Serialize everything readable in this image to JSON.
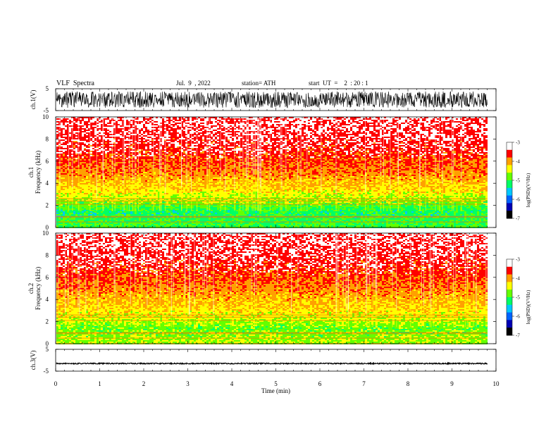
{
  "header": {
    "title": "VLF  Spectra",
    "date": "Jul.  9  , 2022",
    "station": "station= ATH",
    "start": "start  UT  =    2  : 20 : 1"
  },
  "colors": {
    "spectrogram_levels": [
      "#000000",
      "#0000b4",
      "#0064ff",
      "#00c8ff",
      "#00ff64",
      "#64ff00",
      "#ffff00",
      "#ffa000",
      "#ff0000",
      "#ffffff"
    ],
    "trace": "#000000"
  },
  "chart_data": [
    {
      "type": "line",
      "panel": "ch1-waveform",
      "ylabel": "ch.1(V)",
      "ylim": [
        -5,
        5
      ],
      "yticks": [
        "5",
        "-5"
      ],
      "x": [
        0,
        9.8
      ],
      "description_of_signal": "noisy waveform"
    },
    {
      "type": "heatmap",
      "panel": "ch1-spectrogram",
      "ylabel_top": "ch.1",
      "ylabel": "Frequency  (kHz)",
      "ylim": [
        0,
        10
      ],
      "yticks": [
        "0",
        "2",
        "4",
        "6",
        "8",
        "10"
      ],
      "colorbar": {
        "label": "log(PSD)(V²/Hz)",
        "ticks": [
          "-3",
          "-4",
          "-5",
          "-6",
          "-7"
        ],
        "range": [
          -7,
          -3
        ]
      },
      "profile_khz": [
        [
          0.3,
          -5.0
        ],
        [
          1.5,
          -5.2
        ],
        [
          2.5,
          -4.6
        ],
        [
          3.5,
          -4.2
        ],
        [
          5.0,
          -3.8
        ],
        [
          7.0,
          -3.4
        ],
        [
          10.0,
          -3.2
        ]
      ]
    },
    {
      "type": "heatmap",
      "panel": "ch2-spectrogram",
      "ylabel_top": "ch.2",
      "ylabel": "Frequency  (kHz)",
      "ylim": [
        0,
        10
      ],
      "yticks": [
        "0",
        "2",
        "4",
        "6",
        "8",
        "10"
      ],
      "colorbar": {
        "label": "log(PSD)(V²/Hz)",
        "ticks": [
          "-3",
          "-4",
          "-5",
          "-6",
          "-7"
        ],
        "range": [
          -7,
          -3
        ]
      },
      "profile_khz": [
        [
          0.3,
          -4.6
        ],
        [
          1.5,
          -4.8
        ],
        [
          2.5,
          -4.4
        ],
        [
          3.5,
          -4.1
        ],
        [
          5.0,
          -3.8
        ],
        [
          7.0,
          -3.4
        ],
        [
          10.0,
          -3.2
        ]
      ]
    },
    {
      "type": "line",
      "panel": "ch3-waveform",
      "ylabel": "ch.3(V)",
      "ylim": [
        -5,
        5
      ],
      "yticks": [
        "5",
        "-5"
      ],
      "x": [
        0,
        9.8
      ],
      "level_v": -1.5
    }
  ],
  "xaxis": {
    "label": "Time  (min)",
    "range": [
      0,
      10
    ],
    "ticks": [
      "0",
      "1",
      "2",
      "3",
      "4",
      "5",
      "6",
      "7",
      "8",
      "9",
      "10"
    ]
  }
}
